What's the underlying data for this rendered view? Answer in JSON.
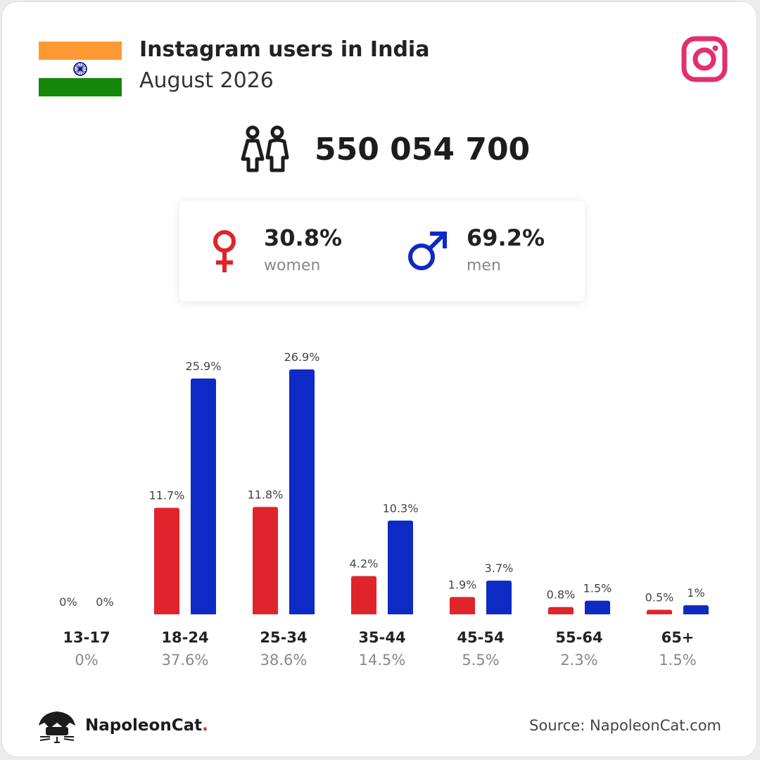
{
  "header": {
    "title": "Instagram users in India",
    "subtitle": "August 2026"
  },
  "colors": {
    "women": "#e0242b",
    "men": "#0e2ac4",
    "instagram": "#e1306c",
    "flag_saffron": "#ff9933",
    "flag_green": "#138808",
    "flag_chakra": "#000080"
  },
  "icons": [
    "india-flag-icon",
    "instagram-icon",
    "people-icon",
    "female-icon",
    "male-icon",
    "napoleoncat-logo-icon"
  ],
  "total": {
    "value": "550 054 700"
  },
  "gender": {
    "women": {
      "pct": "30.8%",
      "label": "women"
    },
    "men": {
      "pct": "69.2%",
      "label": "men"
    }
  },
  "chart_data": {
    "type": "bar",
    "categories": [
      "13-17",
      "18-24",
      "25-34",
      "35-44",
      "45-54",
      "55-64",
      "65+"
    ],
    "category_totals": [
      "0%",
      "37.6%",
      "38.6%",
      "14.5%",
      "5.5%",
      "2.3%",
      "1.5%"
    ],
    "series": [
      {
        "name": "women",
        "values": [
          0,
          11.7,
          11.8,
          4.2,
          1.9,
          0.8,
          0.5
        ],
        "labels": [
          "0%",
          "11.7%",
          "11.8%",
          "4.2%",
          "1.9%",
          "0.8%",
          "0.5%"
        ]
      },
      {
        "name": "men",
        "values": [
          0,
          25.9,
          26.9,
          10.3,
          3.7,
          1.5,
          1
        ],
        "labels": [
          "0%",
          "25.9%",
          "26.9%",
          "10.3%",
          "3.7%",
          "1.5%",
          "1%"
        ]
      }
    ],
    "ylim": [
      0,
      26.9
    ],
    "grid": false
  },
  "footer": {
    "brand": "NapoleonCat",
    "brand_dot": ".",
    "source": "Source: NapoleonCat.com"
  }
}
